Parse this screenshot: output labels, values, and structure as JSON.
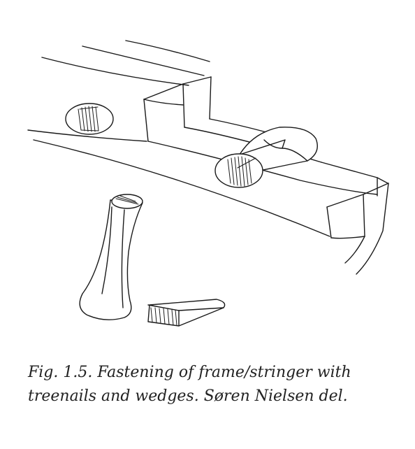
{
  "caption": {
    "line1": "Fig. 1.5. Fastening of frame/stringer with",
    "line2": "treenails and wedges. Søren Nielsen del."
  },
  "drawing": {
    "subject": "frame-stringer-joint",
    "ink_color": "#1a1a1a",
    "paper_color": "#ffffff"
  }
}
